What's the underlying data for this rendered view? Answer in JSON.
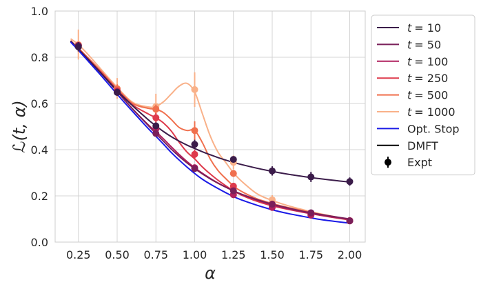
{
  "chart_data": {
    "type": "line",
    "title": "",
    "xlabel": "α",
    "ylabel": "ℒ(t, α)",
    "xlim": [
      0.1,
      2.1
    ],
    "ylim": [
      0.0,
      1.0
    ],
    "xticks": [
      "0.25",
      "0.50",
      "0.75",
      "1.00",
      "1.25",
      "1.50",
      "1.75",
      "2.00"
    ],
    "yticks": [
      "0.0",
      "0.2",
      "0.4",
      "0.6",
      "0.8",
      "1.0"
    ],
    "grid": true,
    "legend_position": "outside-right",
    "curve_x": [
      0.2,
      0.25,
      0.3,
      0.4,
      0.5,
      0.6,
      0.7,
      0.75,
      0.8,
      0.85,
      0.9,
      0.95,
      1.0,
      1.05,
      1.1,
      1.15,
      1.2,
      1.25,
      1.3,
      1.4,
      1.5,
      1.6,
      1.7,
      1.75,
      1.8,
      1.9,
      2.0
    ],
    "series": [
      {
        "name": "t = 10",
        "color": "#3b1c4a",
        "label_main": "t",
        "label_value": "= 10",
        "curve": [
          0.87,
          0.835,
          0.8,
          0.728,
          0.655,
          0.59,
          0.53,
          0.503,
          0.478,
          0.456,
          0.437,
          0.42,
          0.405,
          0.391,
          0.378,
          0.366,
          0.355,
          0.345,
          0.336,
          0.32,
          0.306,
          0.294,
          0.284,
          0.279,
          0.275,
          0.267,
          0.26
        ],
        "points": [
          0.845,
          0.648,
          0.503,
          0.423,
          0.358,
          0.308,
          0.282,
          0.262
        ],
        "errors": [
          0.02,
          0.015,
          0.015,
          0.02,
          0.012,
          0.02,
          0.022,
          0.018
        ]
      },
      {
        "name": "t = 50",
        "color": "#7a1f5a",
        "label_main": "t",
        "label_value": "= 50",
        "curve": [
          0.87,
          0.835,
          0.8,
          0.728,
          0.652,
          0.576,
          0.505,
          0.47,
          0.436,
          0.402,
          0.371,
          0.343,
          0.318,
          0.295,
          0.274,
          0.255,
          0.238,
          0.222,
          0.208,
          0.184,
          0.164,
          0.148,
          0.133,
          0.127,
          0.121,
          0.11,
          0.1
        ],
        "points": [
          0.85,
          0.65,
          0.47,
          0.318,
          0.222,
          0.164,
          0.127,
          0.092
        ],
        "errors": [
          0.0,
          0.01,
          0.01,
          0.01,
          0.01,
          0.01,
          0.01,
          0.01
        ]
      },
      {
        "name": "t = 100",
        "color": "#b0205e",
        "label_main": "t",
        "label_value": "= 100",
        "curve": [
          0.87,
          0.835,
          0.8,
          0.728,
          0.652,
          0.576,
          0.508,
          0.478,
          0.446,
          0.412,
          0.379,
          0.349,
          0.322,
          0.298,
          0.276,
          0.256,
          0.238,
          0.222,
          0.207,
          0.182,
          0.161,
          0.144,
          0.13,
          0.124,
          0.118,
          0.107,
          0.098
        ],
        "points": [
          0.85,
          0.65,
          0.49,
          0.322,
          0.205,
          0.15,
          0.117,
          0.093
        ],
        "errors": [
          0.0,
          0.01,
          0.01,
          0.01,
          0.01,
          0.01,
          0.01,
          0.01
        ]
      },
      {
        "name": "t = 250",
        "color": "#de3a4c",
        "label_main": "t",
        "label_value": "= 250",
        "curve": [
          0.87,
          0.836,
          0.802,
          0.732,
          0.659,
          0.594,
          0.555,
          0.538,
          0.515,
          0.48,
          0.432,
          0.39,
          0.36,
          0.325,
          0.295,
          0.268,
          0.244,
          0.222,
          0.204,
          0.177,
          0.157,
          0.142,
          0.129,
          0.123,
          0.117,
          0.106,
          0.096
        ],
        "points": [
          0.851,
          0.655,
          0.538,
          0.38,
          0.242,
          0.16,
          0.117,
          0.092
        ],
        "errors": [
          0.0,
          0.015,
          0.02,
          0.02,
          0.01,
          0.01,
          0.01,
          0.01
        ]
      },
      {
        "name": "t = 500",
        "color": "#f0704e",
        "label_main": "t",
        "label_value": "= 500",
        "curve": [
          0.872,
          0.84,
          0.806,
          0.737,
          0.664,
          0.6,
          0.579,
          0.575,
          0.56,
          0.53,
          0.496,
          0.483,
          0.483,
          0.43,
          0.36,
          0.31,
          0.275,
          0.243,
          0.22,
          0.188,
          0.167,
          0.15,
          0.136,
          0.129,
          0.122,
          0.11,
          0.097
        ],
        "points": [
          0.853,
          0.663,
          0.575,
          0.483,
          0.297,
          0.165,
          0.118,
          0.092
        ],
        "errors": [
          0.0,
          0.02,
          0.02,
          0.04,
          0.015,
          0.01,
          0.01,
          0.01
        ]
      },
      {
        "name": "t = 1000",
        "color": "#f9b189",
        "label_main": "t",
        "label_value": "= 1000",
        "curve": [
          0.88,
          0.855,
          0.821,
          0.745,
          0.67,
          0.605,
          0.585,
          0.587,
          0.608,
          0.642,
          0.675,
          0.687,
          0.65,
          0.555,
          0.46,
          0.39,
          0.345,
          0.3,
          0.265,
          0.21,
          0.18,
          0.158,
          0.14,
          0.132,
          0.124,
          0.11,
          0.097
        ],
        "points": [
          0.855,
          0.665,
          0.587,
          0.66,
          0.345,
          0.183,
          0.12,
          0.093
        ],
        "errors": [
          0.065,
          0.045,
          0.055,
          0.075,
          0.03,
          0.02,
          0.01,
          0.01
        ]
      },
      {
        "name": "Opt. Stop",
        "color": "#1a1ae6",
        "label_main": "Opt. Stop",
        "label_value": "",
        "curve": [
          0.866,
          0.83,
          0.793,
          0.718,
          0.64,
          0.565,
          0.492,
          0.458,
          0.423,
          0.387,
          0.355,
          0.325,
          0.297,
          0.272,
          0.251,
          0.232,
          0.214,
          0.197,
          0.183,
          0.16,
          0.14,
          0.124,
          0.111,
          0.105,
          0.099,
          0.09,
          0.082
        ],
        "points": [],
        "errors": []
      }
    ],
    "extra_legend": [
      {
        "name": "DMFT",
        "kind": "line",
        "color": "#000000"
      },
      {
        "name": "Expt",
        "kind": "errorpoint",
        "color": "#000000"
      }
    ]
  }
}
